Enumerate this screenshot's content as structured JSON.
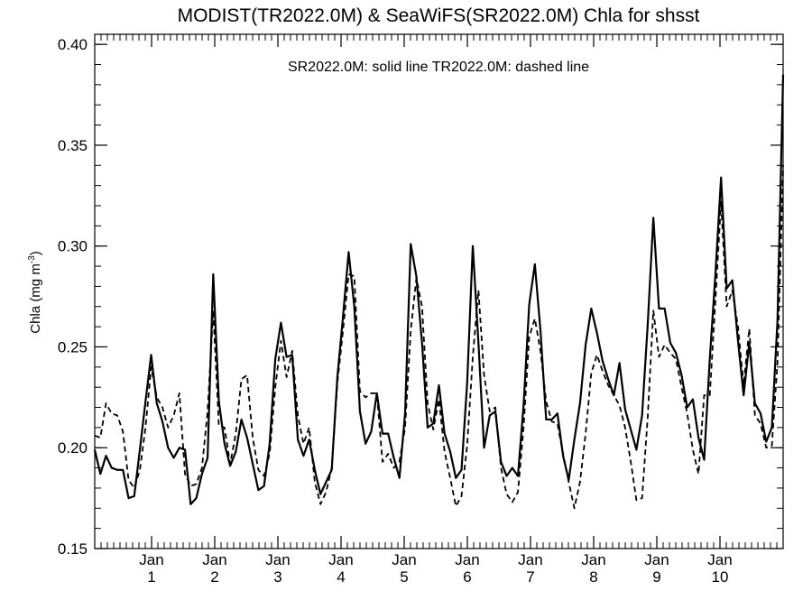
{
  "chart_data": {
    "type": "line",
    "title": "MODIST(TR2022.0M) & SeaWiFS(SR2022.0M)  Chla for shsst",
    "ylabel_main": "Chla (mg m",
    "ylabel_sup": "-3",
    "ylabel_close": ")",
    "legend_text": "SR2022.0M: solid line   TR2022.0M: dashed line",
    "ylim": [
      0.15,
      0.405
    ],
    "xlim": [
      0,
      109
    ],
    "yticks": [
      {
        "value": 0.15,
        "label": "0.15"
      },
      {
        "value": 0.2,
        "label": "0.20"
      },
      {
        "value": 0.25,
        "label": "0.25"
      },
      {
        "value": 0.3,
        "label": "0.30"
      },
      {
        "value": 0.35,
        "label": "0.35"
      },
      {
        "value": 0.4,
        "label": "0.40"
      }
    ],
    "xticks": [
      {
        "value": 9,
        "month": "Jan",
        "year": "1"
      },
      {
        "value": 19,
        "month": "Jan",
        "year": "2"
      },
      {
        "value": 29,
        "month": "Jan",
        "year": "3"
      },
      {
        "value": 39,
        "month": "Jan",
        "year": "4"
      },
      {
        "value": 49,
        "month": "Jan",
        "year": "5"
      },
      {
        "value": 59,
        "month": "Jan",
        "year": "6"
      },
      {
        "value": 69,
        "month": "Jan",
        "year": "7"
      },
      {
        "value": 79,
        "month": "Jan",
        "year": "8"
      },
      {
        "value": 89,
        "month": "Jan",
        "year": "9"
      },
      {
        "value": 99,
        "month": "Jan",
        "year": "10"
      }
    ],
    "series": [
      {
        "style": "solid",
        "values": [
          0.199,
          0.187,
          0.196,
          0.19,
          0.189,
          0.189,
          0.175,
          0.176,
          0.199,
          0.223,
          0.246,
          0.222,
          0.213,
          0.2,
          0.195,
          0.2,
          0.199,
          0.172,
          0.175,
          0.187,
          0.195,
          0.286,
          0.223,
          0.202,
          0.191,
          0.198,
          0.214,
          0.205,
          0.192,
          0.179,
          0.181,
          0.202,
          0.244,
          0.262,
          0.245,
          0.246,
          0.204,
          0.196,
          0.204,
          0.189,
          0.177,
          0.183,
          0.189,
          0.235,
          0.265,
          0.297,
          0.27,
          0.218,
          0.202,
          0.208,
          0.227,
          0.207,
          0.207,
          0.195,
          0.185,
          0.217,
          0.301,
          0.285,
          0.252,
          0.21,
          0.212,
          0.231,
          0.207,
          0.198,
          0.185,
          0.189,
          0.232,
          0.3,
          0.252,
          0.2,
          0.216,
          0.218,
          0.193,
          0.186,
          0.19,
          0.186,
          0.221,
          0.271,
          0.291,
          0.258,
          0.214,
          0.214,
          0.217,
          0.196,
          0.184,
          0.204,
          0.222,
          0.251,
          0.269,
          0.257,
          0.243,
          0.234,
          0.226,
          0.242,
          0.219,
          0.209,
          0.199,
          0.216,
          0.261,
          0.314,
          0.269,
          0.269,
          0.252,
          0.247,
          0.236,
          0.22,
          0.224,
          0.205,
          0.194,
          0.244,
          0.286,
          0.334,
          0.279,
          0.283,
          0.253,
          0.226,
          0.252,
          0.222,
          0.217,
          0.203,
          0.21,
          0.263,
          0.385
        ]
      },
      {
        "style": "dashed",
        "values": [
          0.206,
          0.205,
          0.222,
          0.217,
          0.216,
          0.208,
          0.184,
          0.18,
          0.189,
          0.21,
          0.24,
          0.225,
          0.22,
          0.21,
          0.216,
          0.227,
          0.187,
          0.181,
          0.182,
          0.19,
          0.218,
          0.268,
          0.211,
          0.21,
          0.192,
          0.207,
          0.234,
          0.236,
          0.205,
          0.189,
          0.186,
          0.197,
          0.23,
          0.253,
          0.235,
          0.248,
          0.216,
          0.202,
          0.21,
          0.183,
          0.172,
          0.178,
          0.19,
          0.232,
          0.258,
          0.286,
          0.285,
          0.228,
          0.225,
          0.227,
          0.227,
          0.193,
          0.197,
          0.19,
          0.193,
          0.21,
          0.258,
          0.284,
          0.27,
          0.222,
          0.209,
          0.224,
          0.198,
          0.185,
          0.171,
          0.176,
          0.201,
          0.245,
          0.278,
          0.236,
          0.218,
          0.22,
          0.19,
          0.177,
          0.173,
          0.178,
          0.21,
          0.255,
          0.264,
          0.248,
          0.223,
          0.213,
          0.212,
          0.197,
          0.183,
          0.17,
          0.183,
          0.207,
          0.237,
          0.246,
          0.238,
          0.231,
          0.226,
          0.221,
          0.21,
          0.193,
          0.174,
          0.175,
          0.215,
          0.268,
          0.245,
          0.251,
          0.247,
          0.244,
          0.23,
          0.217,
          0.199,
          0.187,
          0.226,
          0.226,
          0.273,
          0.322,
          0.27,
          0.278,
          0.26,
          0.231,
          0.259,
          0.216,
          0.212,
          0.2,
          0.201,
          0.242,
          0.34
        ]
      }
    ]
  }
}
